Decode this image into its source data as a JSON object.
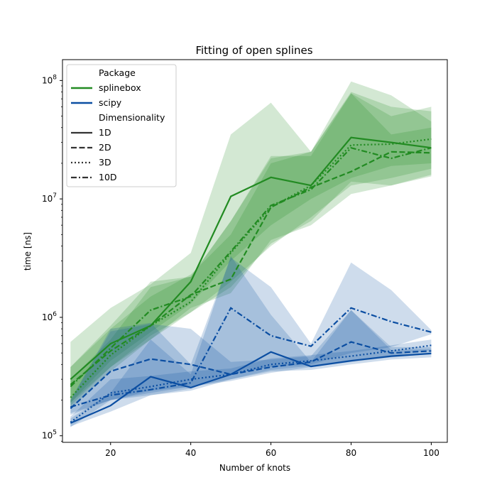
{
  "chart_data": {
    "type": "line",
    "title": "Fitting of open splines",
    "xlabel": "Number of knots",
    "ylabel": "time [ns]",
    "yscale": "log",
    "xlim": [
      8,
      104
    ],
    "ylim": [
      88000,
      150000000
    ],
    "xticks": [
      20,
      40,
      60,
      80,
      100
    ],
    "xtick_labels": [
      "20",
      "40",
      "60",
      "80",
      "100"
    ],
    "yticks": [
      100000,
      1000000,
      10000000,
      100000000
    ],
    "ytick_bases": [
      "10",
      "10",
      "10",
      "10"
    ],
    "ytick_exps": [
      "5",
      "6",
      "7",
      "8"
    ],
    "x": [
      10,
      20,
      30,
      40,
      50,
      60,
      70,
      80,
      90,
      100
    ],
    "legend": {
      "placement": "top-left",
      "hue_title": "Package",
      "style_title": "Dimensionality",
      "packages": [
        "splinebox",
        "scipy"
      ],
      "dims": [
        "1D",
        "2D",
        "3D",
        "10D"
      ]
    },
    "colors": {
      "splinebox": "#228b22",
      "scipy": "#0b4ea2"
    },
    "series": [
      {
        "package": "splinebox",
        "dim": "1D",
        "values": [
          300000,
          600000,
          850000,
          2000000,
          10500000,
          15200000,
          13000000,
          33000000,
          30000000,
          27000000
        ]
      },
      {
        "package": "splinebox",
        "dim": "2D",
        "values": [
          270000,
          520000,
          850000,
          1550000,
          2100000,
          8500000,
          12500000,
          17000000,
          25000000,
          24500000
        ]
      },
      {
        "package": "splinebox",
        "dim": "3D",
        "values": [
          210000,
          480000,
          850000,
          1350000,
          3500000,
          8500000,
          13000000,
          28500000,
          29000000,
          32000000
        ]
      },
      {
        "package": "splinebox",
        "dim": "10D",
        "values": [
          260000,
          550000,
          1150000,
          1500000,
          3600000,
          8800000,
          12000000,
          27000000,
          22000000,
          27000000
        ]
      },
      {
        "package": "scipy",
        "dim": "1D",
        "values": [
          128000,
          180000,
          315000,
          255000,
          330000,
          510000,
          385000,
          430000,
          470000,
          495000
        ]
      },
      {
        "package": "scipy",
        "dim": "2D",
        "values": [
          170000,
          350000,
          445000,
          400000,
          330000,
          380000,
          420000,
          620000,
          500000,
          520000
        ]
      },
      {
        "package": "scipy",
        "dim": "3D",
        "values": [
          130000,
          230000,
          260000,
          300000,
          330000,
          400000,
          430000,
          470000,
          520000,
          580000
        ]
      },
      {
        "package": "scipy",
        "dim": "10D",
        "values": [
          175000,
          220000,
          245000,
          280000,
          1200000,
          700000,
          570000,
          1200000,
          920000,
          750000
        ]
      }
    ],
    "bands": [
      {
        "package": "splinebox",
        "dim": "1D",
        "upper": [
          620000,
          1200000,
          1900000,
          3500000,
          35000000,
          65000000,
          25000000,
          98000000,
          75000000,
          45000000
        ],
        "lower": [
          190000,
          430000,
          750000,
          1300000,
          3000000,
          6000000,
          10000000,
          15000000,
          19000000,
          20000000
        ]
      },
      {
        "package": "splinebox",
        "dim": "2D",
        "upper": [
          380000,
          800000,
          1500000,
          2300000,
          5000000,
          20000000,
          25000000,
          78000000,
          50000000,
          60000000
        ],
        "lower": [
          190000,
          380000,
          650000,
          1200000,
          1600000,
          4500000,
          6000000,
          11000000,
          13000000,
          16000000
        ]
      },
      {
        "package": "splinebox",
        "dim": "3D",
        "upper": [
          300000,
          650000,
          1800000,
          2200000,
          6500000,
          22000000,
          25000000,
          80000000,
          60000000,
          55000000
        ],
        "lower": [
          170000,
          350000,
          650000,
          1100000,
          2000000,
          4000000,
          7000000,
          13000000,
          15000000,
          18000000
        ]
      },
      {
        "package": "splinebox",
        "dim": "10D",
        "upper": [
          380000,
          850000,
          2000000,
          2200000,
          6500000,
          23000000,
          23000000,
          78000000,
          35000000,
          40000000
        ],
        "lower": [
          180000,
          380000,
          700000,
          1100000,
          1800000,
          4200000,
          6500000,
          14000000,
          13000000,
          15500000
        ]
      },
      {
        "package": "scipy",
        "dim": "1D",
        "upper": [
          140000,
          230000,
          650000,
          330000,
          3300000,
          1050000,
          420000,
          1150000,
          530000,
          540000
        ],
        "lower": [
          120000,
          160000,
          220000,
          240000,
          300000,
          350000,
          360000,
          400000,
          440000,
          460000
        ]
      },
      {
        "package": "scipy",
        "dim": "2D",
        "upper": [
          200000,
          760000,
          880000,
          800000,
          420000,
          440000,
          470000,
          1150000,
          560000,
          560000
        ],
        "lower": [
          150000,
          200000,
          240000,
          260000,
          290000,
          340000,
          380000,
          420000,
          460000,
          490000
        ]
      },
      {
        "package": "scipy",
        "dim": "3D",
        "upper": [
          145000,
          300000,
          320000,
          350000,
          370000,
          450000,
          480000,
          520000,
          580000,
          650000
        ],
        "lower": [
          118000,
          200000,
          230000,
          260000,
          300000,
          360000,
          390000,
          430000,
          470000,
          530000
        ]
      },
      {
        "package": "scipy",
        "dim": "10D",
        "upper": [
          200000,
          800000,
          900000,
          400000,
          3200000,
          1800000,
          600000,
          2900000,
          1700000,
          780000
        ],
        "lower": [
          155000,
          200000,
          220000,
          250000,
          330000,
          380000,
          400000,
          500000,
          560000,
          720000
        ]
      }
    ]
  }
}
